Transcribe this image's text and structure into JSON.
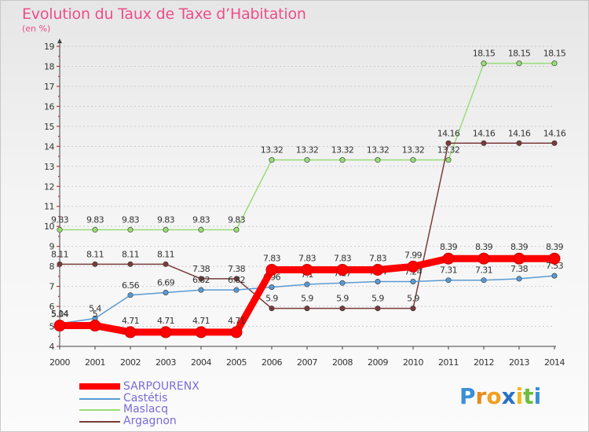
{
  "title": "Evolution du Taux de Taxe d’Habitation",
  "unit_label": "(en %)",
  "colors": {
    "sarpourenx": "#ff0000",
    "castetis": "#5a9ad2",
    "maslacq": "#99dd77",
    "argagnon": "#7a3b3b",
    "axis": "#444444",
    "tick_red": "#cc1111",
    "grid": "#cccccc",
    "title": "#ee4d8a"
  },
  "logo": {
    "letters": [
      "P",
      "r",
      "o",
      "x",
      "i",
      "t",
      "i"
    ],
    "colors": [
      "#3a8fd6",
      "#e88a1a",
      "#f0a020",
      "#2a70c8",
      "#f3b61d",
      "#6bbf3a",
      "#3a8fd6"
    ]
  },
  "chart_data": {
    "type": "line",
    "title": "Evolution du Taux de Taxe d’Habitation",
    "ylabel": "(en %)",
    "xlabel": "",
    "x": [
      "2000",
      "2001",
      "2002",
      "2003",
      "2004",
      "2005",
      "2006",
      "2007",
      "2008",
      "2009",
      "2010",
      "2011",
      "2012",
      "2013",
      "2014"
    ],
    "yticks": [
      "4",
      "5",
      "6",
      "7",
      "8",
      "9",
      "10",
      "11",
      "12",
      "13",
      "14",
      "15",
      "16",
      "17",
      "18",
      "19"
    ],
    "ylim": [
      4,
      19
    ],
    "grid": "horizontal dashed",
    "legend_position": "bottom-left",
    "series": [
      {
        "name": "SARPOURENX",
        "values": [
          5.04,
          5.04,
          4.71,
          4.71,
          4.71,
          4.71,
          7.83,
          7.83,
          7.83,
          7.83,
          7.99,
          8.39,
          8.39,
          8.39,
          8.39
        ],
        "labels": [
          "5.04",
          "5",
          "4.71",
          "4.71",
          "4.71",
          "4.71",
          "7.83",
          "7.83",
          "7.83",
          "7.83",
          "7.99",
          "8.39",
          "8.39",
          "8.39",
          "8.39"
        ],
        "color": "#ff0000",
        "width": "thick"
      },
      {
        "name": "Castétis",
        "values": [
          5.14,
          5.4,
          6.56,
          6.69,
          6.82,
          6.82,
          6.96,
          7.1,
          7.17,
          7.24,
          7.24,
          7.31,
          7.31,
          7.38,
          7.53
        ],
        "labels": [
          "5.14",
          "5.4",
          "6.56",
          "6.69",
          "6.82",
          "6.82",
          "6.96",
          "7.1",
          "7.17",
          "7.24",
          "7.24",
          "7.31",
          "7.31",
          "7.38",
          "7.53"
        ],
        "color": "#5a9ad2",
        "width": "thin"
      },
      {
        "name": "Maslacq",
        "values": [
          9.83,
          9.83,
          9.83,
          9.83,
          9.83,
          9.83,
          13.32,
          13.32,
          13.32,
          13.32,
          13.32,
          13.32,
          18.15,
          18.15,
          18.15
        ],
        "labels": [
          "9.83",
          "9.83",
          "9.83",
          "9.83",
          "9.83",
          "9.83",
          "13.32",
          "13.32",
          "13.32",
          "13.32",
          "13.32",
          "13.32",
          "18.15",
          "18.15",
          "18.15"
        ],
        "color": "#99dd77",
        "width": "thin"
      },
      {
        "name": "Argagnon",
        "values": [
          8.11,
          8.11,
          8.11,
          8.11,
          7.38,
          7.38,
          5.9,
          5.9,
          5.9,
          5.9,
          5.9,
          14.16,
          14.16,
          14.16,
          14.16
        ],
        "labels": [
          "8.11",
          "8.11",
          "8.11",
          "8.11",
          "7.38",
          "7.38",
          "5.9",
          "5.9",
          "5.9",
          "5.9",
          "5.9",
          "14.16",
          "14.16",
          "14.16",
          "14.16"
        ],
        "color": "#7a3b3b",
        "width": "thin"
      }
    ]
  }
}
